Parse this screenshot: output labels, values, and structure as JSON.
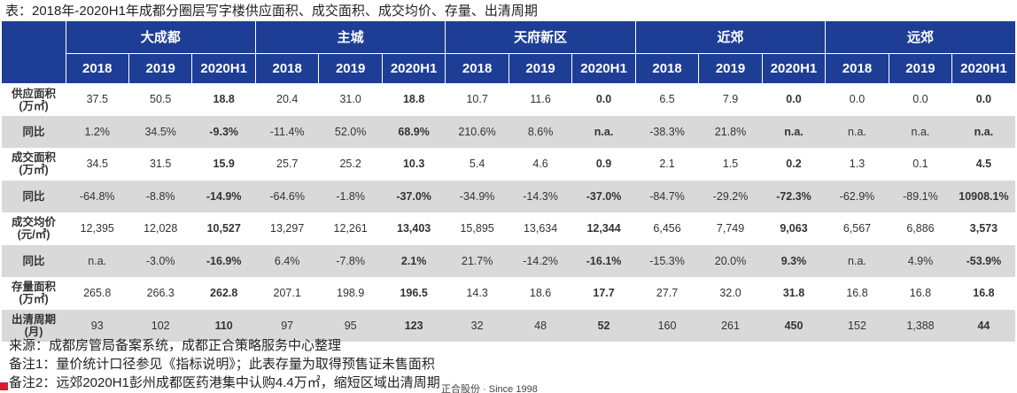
{
  "title": "表：2018年-2020H1年成都分圈层写字楼供应面积、成交面积、成交均价、存量、出清周期",
  "groups": [
    "大成都",
    "主城",
    "天府新区",
    "近郊",
    "远郊"
  ],
  "years": [
    "2018",
    "2019",
    "2020H1"
  ],
  "rows": [
    {
      "label": [
        "供应面积",
        "(万㎡)"
      ],
      "values": [
        "37.5",
        "50.5",
        "18.8",
        "20.4",
        "31.0",
        "18.8",
        "10.7",
        "11.6",
        "0.0",
        "6.5",
        "7.9",
        "0.0",
        "0.0",
        "0.0",
        "0.0"
      ],
      "styles": [
        "",
        "",
        "b",
        "",
        "",
        "b",
        "",
        "",
        "b",
        "",
        "",
        "b",
        "",
        "",
        "b"
      ]
    },
    {
      "label": [
        "同比"
      ],
      "values": [
        "1.2%",
        "34.5%",
        "-9.3%",
        "-11.4%",
        "52.0%",
        "68.9%",
        "210.6%",
        "8.6%",
        "n.a.",
        "-38.3%",
        "21.8%",
        "n.a.",
        "n.a.",
        "n.a.",
        "n.a."
      ],
      "styles": [
        "",
        "",
        "neg",
        "",
        "",
        "pos",
        "",
        "",
        "b",
        "",
        "",
        "b",
        "",
        "",
        "b"
      ]
    },
    {
      "label": [
        "成交面积",
        "(万㎡)"
      ],
      "values": [
        "34.5",
        "31.5",
        "15.9",
        "25.7",
        "25.2",
        "10.3",
        "5.4",
        "4.6",
        "0.9",
        "2.1",
        "1.5",
        "0.2",
        "1.3",
        "0.1",
        "4.5"
      ],
      "styles": [
        "",
        "",
        "b",
        "",
        "",
        "b",
        "",
        "",
        "b",
        "",
        "",
        "b",
        "",
        "",
        "b"
      ]
    },
    {
      "label": [
        "同比"
      ],
      "values": [
        "-64.8%",
        "-8.8%",
        "-14.9%",
        "-64.6%",
        "-1.8%",
        "-37.0%",
        "-34.9%",
        "-14.3%",
        "-37.0%",
        "-84.7%",
        "-29.2%",
        "-72.3%",
        "-62.9%",
        "-89.1%",
        "10908.1%"
      ],
      "styles": [
        "",
        "",
        "neg",
        "",
        "",
        "neg",
        "",
        "",
        "neg",
        "",
        "",
        "neg",
        "",
        "",
        "pos"
      ]
    },
    {
      "label": [
        "成交均价",
        "(元/㎡)"
      ],
      "values": [
        "12,395",
        "12,028",
        "10,527",
        "13,297",
        "12,261",
        "13,403",
        "15,895",
        "13,634",
        "12,344",
        "6,456",
        "7,749",
        "9,063",
        "6,567",
        "6,886",
        "3,573"
      ],
      "styles": [
        "",
        "",
        "b",
        "",
        "",
        "b",
        "",
        "",
        "b",
        "",
        "",
        "b",
        "",
        "",
        "b"
      ]
    },
    {
      "label": [
        "同比"
      ],
      "values": [
        "n.a.",
        "-3.0%",
        "-16.9%",
        "6.4%",
        "-7.8%",
        "2.1%",
        "21.7%",
        "-14.2%",
        "-16.1%",
        "-15.3%",
        "20.0%",
        "9.3%",
        "n.a.",
        "4.9%",
        "-53.9%"
      ],
      "styles": [
        "",
        "",
        "neg",
        "",
        "",
        "pos",
        "",
        "",
        "neg",
        "",
        "",
        "pos",
        "",
        "",
        "neg"
      ]
    },
    {
      "label": [
        "存量面积",
        "(万㎡)"
      ],
      "values": [
        "265.8",
        "266.3",
        "262.8",
        "207.1",
        "198.9",
        "196.5",
        "14.3",
        "18.6",
        "17.7",
        "27.7",
        "32.0",
        "31.8",
        "16.8",
        "16.8",
        "16.8"
      ],
      "styles": [
        "",
        "",
        "b",
        "",
        "",
        "b",
        "",
        "",
        "b",
        "",
        "",
        "b",
        "",
        "",
        "b"
      ]
    },
    {
      "label": [
        "出清周期",
        "(月)"
      ],
      "values": [
        "93",
        "102",
        "110",
        "97",
        "95",
        "123",
        "32",
        "48",
        "52",
        "160",
        "261",
        "450",
        "152",
        "1,388",
        "44"
      ],
      "styles": [
        "",
        "",
        "red",
        "",
        "",
        "red",
        "",
        "",
        "red",
        "",
        "",
        "red",
        "",
        "",
        "green"
      ]
    }
  ],
  "notes": [
    "来源：成都房管局备案系统，成都正合策略服务中心整理",
    "备注1：量价统计口径参见《指标说明》；此表存量为取得预售证未售面积",
    "备注2：远郊2020H1彭州成都医药港集中认购4.4万㎡，缩短区域出清周期"
  ],
  "footer_brand": "正合股份 · Since 1998"
}
